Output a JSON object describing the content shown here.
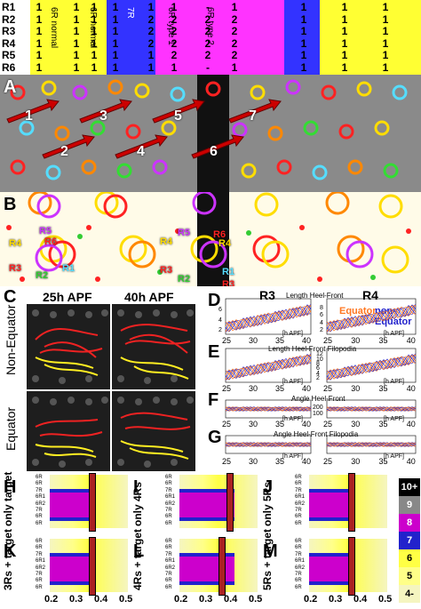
{
  "top_table": {
    "row_labels": [
      "R1",
      "R2",
      "R3",
      "R4",
      "R5",
      "R6"
    ],
    "columns": [
      {
        "color": "#ffff33",
        "values": [
          "1",
          "1",
          "1",
          "1",
          "1",
          "1"
        ]
      },
      {
        "color": "#ffff33",
        "values": [
          "1",
          "1",
          "1",
          "1",
          "1",
          "1"
        ]
      },
      {
        "color": "#ffff33",
        "values": [
          "1",
          "1",
          "1",
          "1",
          "1",
          "1"
        ]
      },
      {
        "color": "#3333ff",
        "values": [
          "1",
          "1",
          "1",
          "1",
          "1",
          "1"
        ]
      },
      {
        "color": "#3333ff",
        "values": [
          "1",
          "2",
          "2",
          "2",
          "1",
          "1"
        ]
      },
      {
        "color": "#ff33ff",
        "values": [
          "1",
          "2",
          "2",
          "2",
          "2",
          "1"
        ]
      },
      {
        "color": "#ff33ff",
        "values": [
          "-",
          "2",
          "2",
          "2",
          "2",
          "-"
        ]
      },
      {
        "color": "#ff33ff",
        "values": [
          "1",
          "2",
          "2",
          "2",
          "2",
          "1"
        ]
      },
      {
        "color": "#3333ff",
        "values": [
          "1",
          "1",
          "1",
          "1",
          "1",
          "1"
        ]
      },
      {
        "color": "#ffff33",
        "values": [
          "1",
          "1",
          "1",
          "1",
          "1",
          "1"
        ]
      },
      {
        "color": "#ffff33",
        "values": [
          "1",
          "1",
          "1",
          "1",
          "1",
          "1"
        ]
      }
    ],
    "group_labels": [
      "6R normal",
      "6R normal",
      "7R",
      "6R type 1",
      "6R type 2"
    ]
  },
  "panel_labels": {
    "a": "A",
    "b": "B",
    "c": "C",
    "d": "D",
    "e": "E",
    "f": "F",
    "g": "G",
    "h": "H",
    "i": "I",
    "j": "J",
    "k": "K",
    "l": "L",
    "m": "M"
  },
  "panel_a": {
    "numbers": [
      "1",
      "2",
      "3",
      "4",
      "5",
      "6",
      "7"
    ]
  },
  "panel_b": {
    "receptor_labels": [
      "R5",
      "R6",
      "R4",
      "R3",
      "R2",
      "R1",
      "R4",
      "R5",
      "R3",
      "R2",
      "R4",
      "R6",
      "R1",
      "R3"
    ]
  },
  "panel_c": {
    "col_labels": [
      "25h APF",
      "40h APF"
    ],
    "row_labels": [
      "Non-Equator",
      "Equator"
    ]
  },
  "panel_dg": {
    "col_labels": [
      "R3",
      "R4"
    ],
    "legend": {
      "equator": "Equator",
      "non_equator": "non-Equator"
    },
    "titles": [
      "Length Heel-Front",
      "Length Heel-Front Filopodia",
      "Angle Heel-Front",
      "Angle Heel-Front Filopodia"
    ],
    "unit_label": "[h APF]",
    "x_ticks": [
      "25",
      "30",
      "35",
      "40"
    ],
    "y_ticks_d_left": [
      "2",
      "4",
      "6"
    ],
    "y_ticks_d_right": [
      "2",
      "4",
      "6",
      "8"
    ],
    "y_ticks_e_right": [
      "2",
      "4",
      "6",
      "8",
      "10",
      "12"
    ],
    "y_ticks_f_right": [
      "100",
      "200"
    ],
    "y_unit_left": "[μm]"
  },
  "heatmaps": {
    "row_labels": [
      "6R",
      "6R",
      "7R",
      "6R1",
      "6R2",
      "7R",
      "6R",
      "6R"
    ],
    "side_labels": {
      "h": "only target",
      "i": "only 4Rs",
      "j": "only 5Rs",
      "k": "3Rs + target",
      "l": "4Rs + target",
      "m": "5Rs + target"
    },
    "x_ticks": [
      "0.2",
      "0.3",
      "0.4",
      "0.5"
    ],
    "colorbar": [
      {
        "label": "10+",
        "color": "#000000"
      },
      {
        "label": "9",
        "color": "#888888"
      },
      {
        "label": "8",
        "color": "#cc00cc"
      },
      {
        "label": "7",
        "color": "#2222cc"
      },
      {
        "label": "6",
        "color": "#ffff44"
      },
      {
        "label": "5",
        "color": "#ffff88"
      },
      {
        "label": "4-",
        "color": "#f5f5c0"
      }
    ]
  }
}
